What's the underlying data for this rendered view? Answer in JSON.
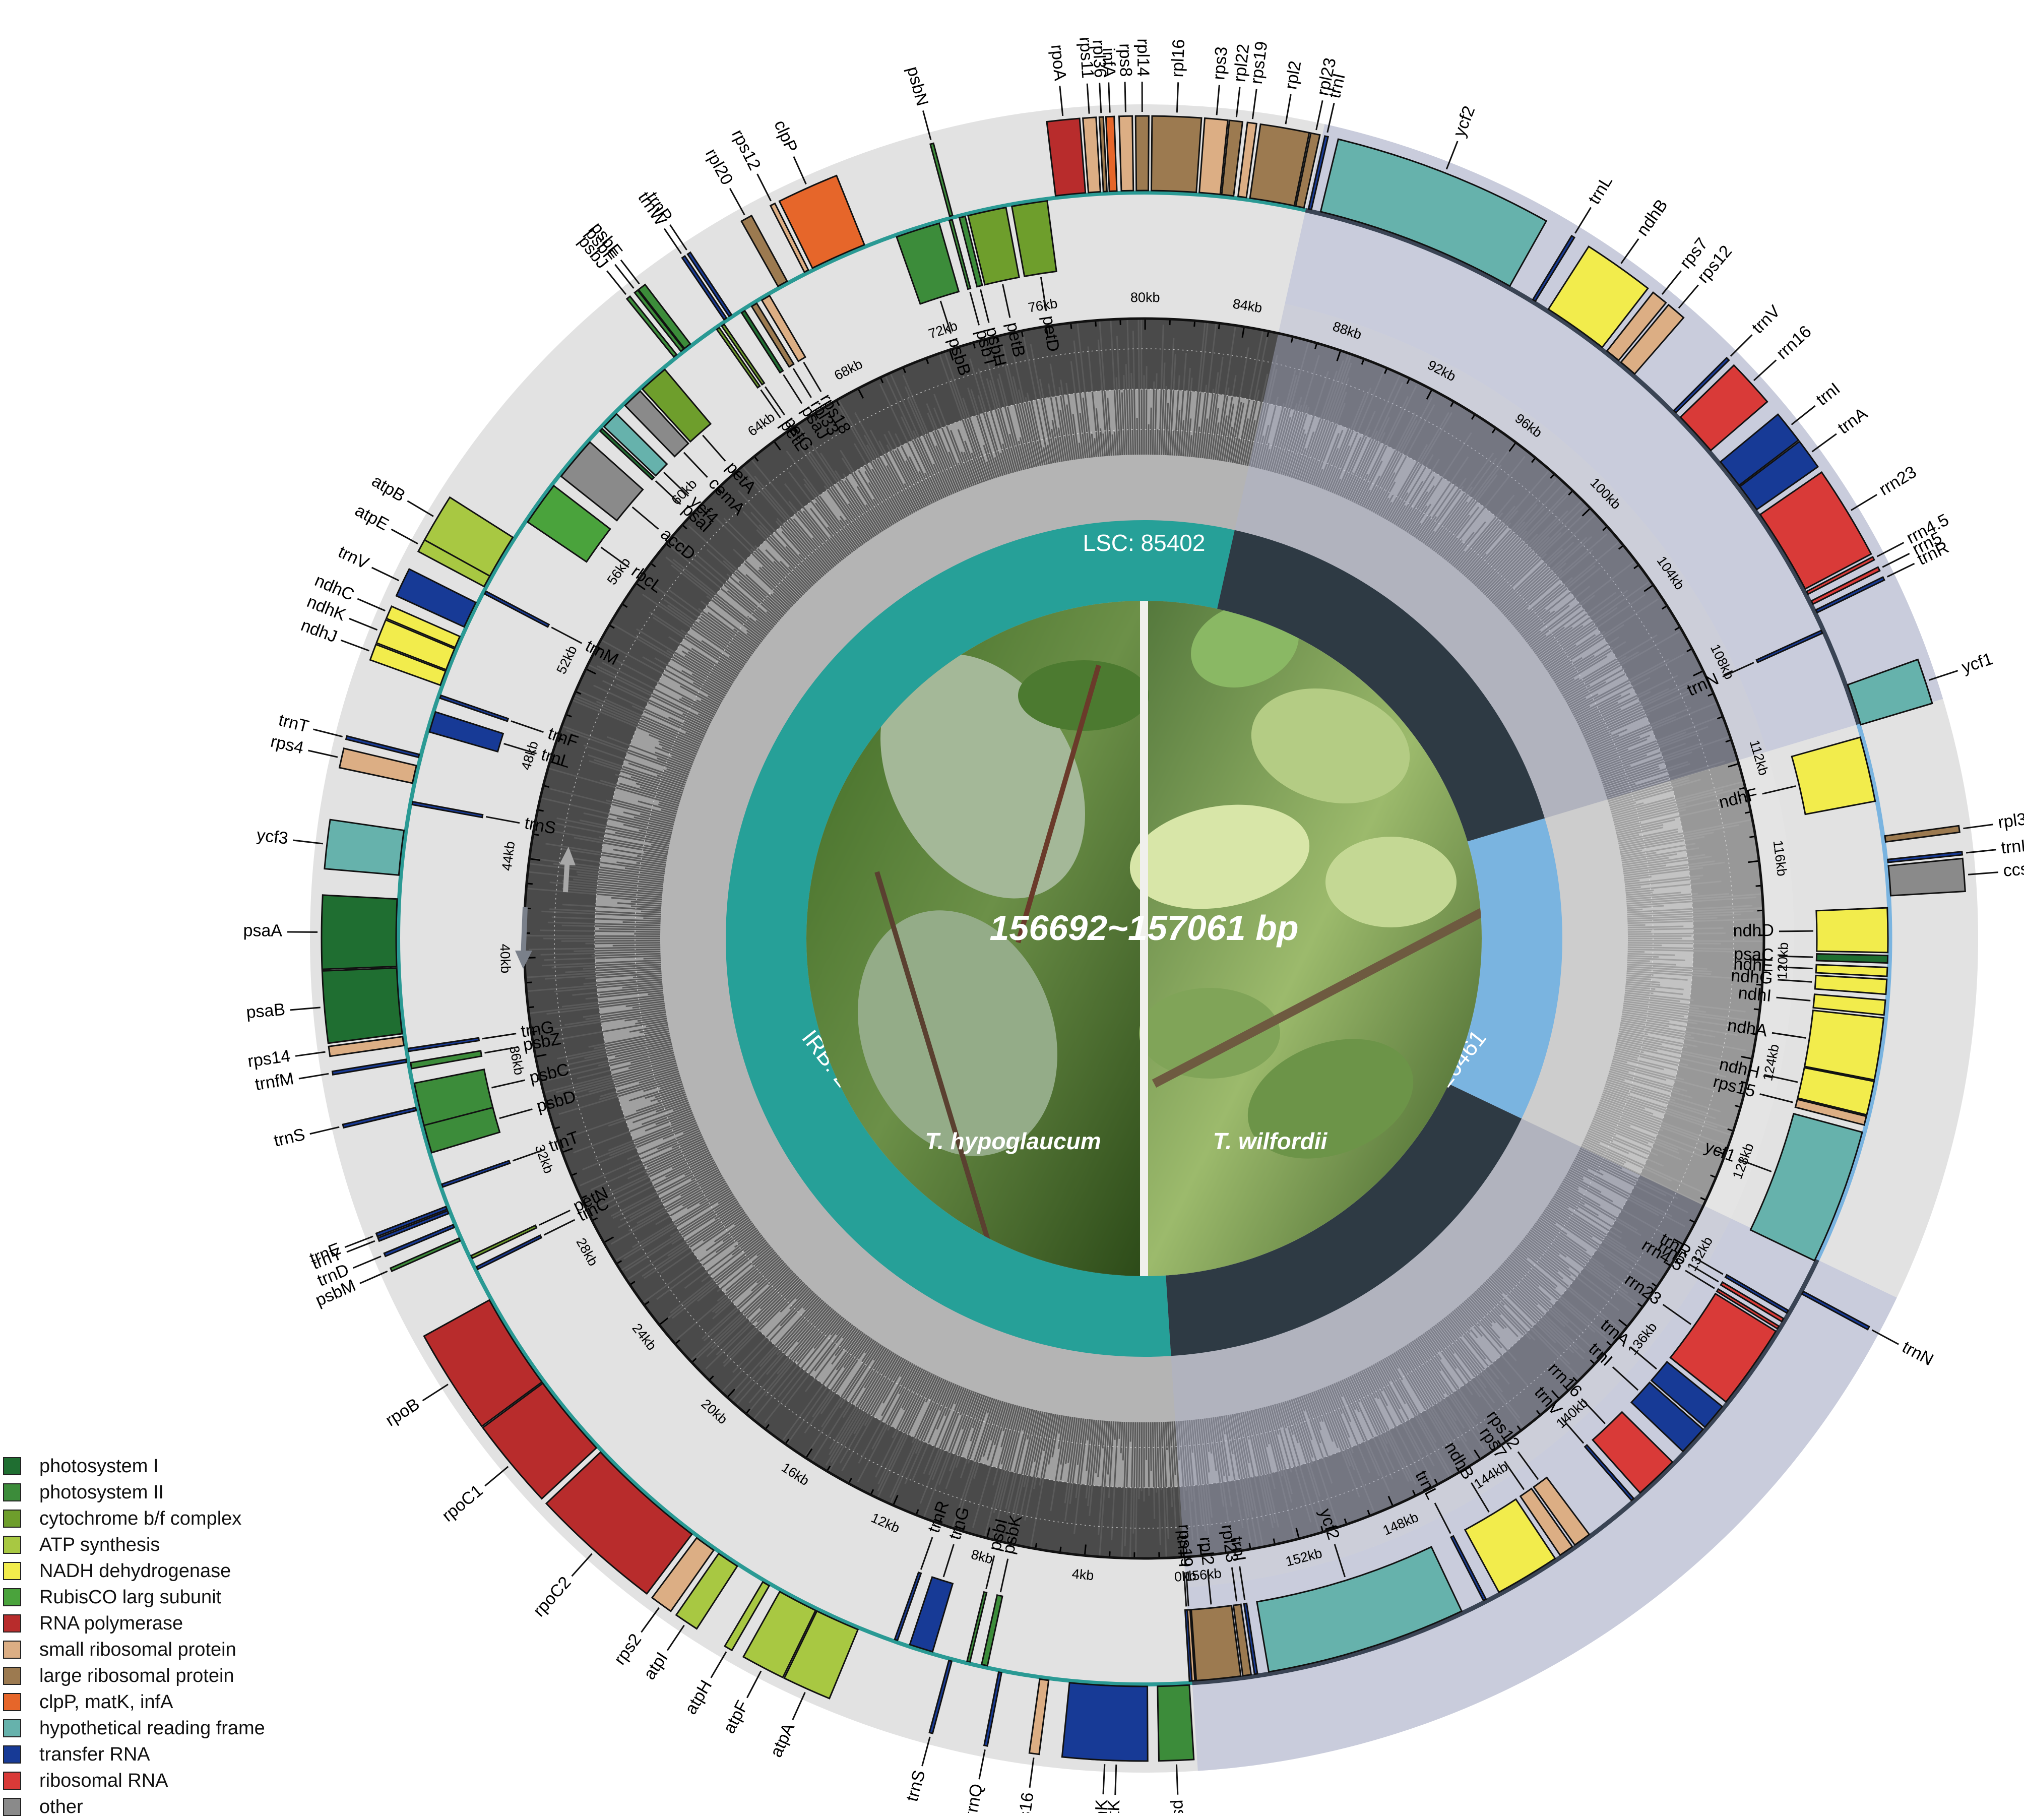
{
  "center": {
    "size_text": "156692~157061 bp",
    "species_left": "T. hypoglaucum",
    "species_right": "T. wilfordii"
  },
  "regions": [
    {
      "label": "LSC: 85402",
      "start": 0,
      "end": 85402,
      "color": "#26a098"
    },
    {
      "label": "IRA: 26461",
      "start": 85402,
      "end": 111863,
      "color": "#2e3a44"
    },
    {
      "label": "SSC: 18368",
      "start": 111863,
      "end": 130231,
      "color": "#7ab4e0"
    },
    {
      "label": "IRB: 26461",
      "start": 130231,
      "end": 156692,
      "color": "#2e3a44"
    }
  ],
  "ticks": [
    "0kb",
    "4kb",
    "8kb",
    "12kb",
    "16kb",
    "20kb",
    "24kb",
    "28kb",
    "32kb",
    "36kb",
    "40kb",
    "44kb",
    "48kb",
    "52kb",
    "56kb",
    "60kb",
    "64kb",
    "68kb",
    "72kb",
    "76kb",
    "80kb",
    "84kb",
    "88kb",
    "92kb",
    "96kb",
    "100kb",
    "104kb",
    "108kb",
    "112kb",
    "116kb",
    "120kb",
    "124kb",
    "128kb",
    "132kb",
    "136kb",
    "140kb",
    "144kb",
    "148kb",
    "152kb",
    "156kb"
  ],
  "categories": {
    "psI": "#1f6e31",
    "psII": "#3c8c3a",
    "cyt": "#6e9e2c",
    "atp": "#a8c842",
    "ndh": "#f2ec4c",
    "rbc": "#4aa33c",
    "rpo": "#b82c2c",
    "rps": "#dcae84",
    "rpl": "#9c7a50",
    "clp": "#e6662a",
    "ycf": "#66b2ac",
    "trn": "#173a96",
    "rrn": "#d93a38",
    "oth": "#8a8a8a"
  },
  "legend": [
    {
      "key": "photosystem-i",
      "label": "photosystem I"
    },
    {
      "key": "photosystem-ii",
      "label": "photosystem II"
    },
    {
      "key": "cytochrome-b-f-complex",
      "label": "cytochrome b/f complex"
    },
    {
      "key": "atp-synthesis",
      "label": "ATP synthesis"
    },
    {
      "key": "nadh-dehydrogenase",
      "label": "NADH dehydrogenase"
    },
    {
      "key": "rubisco",
      "label": "RubisCO larg subunit"
    },
    {
      "key": "rna-polymerase",
      "label": "RNA polymerase"
    },
    {
      "key": "small-ribosomal-protein",
      "label": "small ribosomal protein"
    },
    {
      "key": "large-ribosomal-protein",
      "label": "large ribosomal protein"
    },
    {
      "key": "clpp-matk-infa",
      "label": "clpP, matK, infA"
    },
    {
      "key": "hypothetical-reading-frame",
      "label": "hypothetical reading frame"
    },
    {
      "key": "transfer-rna",
      "label": "transfer RNA"
    },
    {
      "key": "ribosomal-rna",
      "label": "ribosomal RNA"
    },
    {
      "key": "other",
      "label": "other"
    }
  ],
  "genes": [
    {
      "name": "trnH",
      "start": 0,
      "end": 75,
      "cat": "trn",
      "strand": "in"
    },
    {
      "name": "psbA",
      "start": 100,
      "end": 1160,
      "cat": "psII",
      "strand": "out"
    },
    {
      "name": "matK",
      "start": 1700,
      "end": 3200,
      "cat": "clp",
      "strand": "out"
    },
    {
      "name": "trnK",
      "start": 1500,
      "end": 4100,
      "cat": "trn",
      "strand": "out"
    },
    {
      "name": "rps16",
      "start": 4800,
      "end": 5100,
      "cat": "rps",
      "strand": "out"
    },
    {
      "name": "trnQ",
      "start": 6400,
      "end": 6480,
      "cat": "trn",
      "strand": "out"
    },
    {
      "name": "psbK",
      "start": 6900,
      "end": 7100,
      "cat": "psII",
      "strand": "in"
    },
    {
      "name": "psbI",
      "start": 7500,
      "end": 7600,
      "cat": "psII",
      "strand": "in"
    },
    {
      "name": "trnS",
      "start": 8100,
      "end": 8190,
      "cat": "trn",
      "strand": "out"
    },
    {
      "name": "trnG",
      "start": 8800,
      "end": 9600,
      "cat": "trn",
      "strand": "in"
    },
    {
      "name": "trnR",
      "start": 10050,
      "end": 10120,
      "cat": "trn",
      "strand": "in"
    },
    {
      "name": "atpA",
      "start": 11400,
      "end": 12900,
      "cat": "atp",
      "strand": "out"
    },
    {
      "name": "atpF",
      "start": 12950,
      "end": 14300,
      "cat": "atp",
      "strand": "out"
    },
    {
      "name": "atpH",
      "start": 14700,
      "end": 14950,
      "cat": "atp",
      "strand": "out"
    },
    {
      "name": "atpI",
      "start": 15950,
      "end": 16700,
      "cat": "atp",
      "strand": "out"
    },
    {
      "name": "rps2",
      "start": 16900,
      "end": 17600,
      "cat": "rps",
      "strand": "out"
    },
    {
      "name": "rpoC2",
      "start": 17800,
      "end": 21900,
      "cat": "rpo",
      "strand": "out"
    },
    {
      "name": "rpoC1",
      "start": 22100,
      "end": 24900,
      "cat": "rpo",
      "strand": "out"
    },
    {
      "name": "rpoB",
      "start": 24950,
      "end": 28200,
      "cat": "rpo",
      "strand": "out"
    },
    {
      "name": "trnC",
      "start": 29300,
      "end": 29380,
      "cat": "trn",
      "strand": "in"
    },
    {
      "name": "petN",
      "start": 29700,
      "end": 29800,
      "cat": "cyt",
      "strand": "in"
    },
    {
      "name": "psbM",
      "start": 30400,
      "end": 30500,
      "cat": "psII",
      "strand": "out"
    },
    {
      "name": "trnD",
      "start": 30900,
      "end": 30980,
      "cat": "trn",
      "strand": "out"
    },
    {
      "name": "trnY",
      "start": 31400,
      "end": 31480,
      "cat": "trn",
      "strand": "out"
    },
    {
      "name": "trnE",
      "start": 31550,
      "end": 31630,
      "cat": "trn",
      "strand": "out"
    },
    {
      "name": "trnT",
      "start": 32300,
      "end": 32380,
      "cat": "trn",
      "strand": "in"
    },
    {
      "name": "psbD",
      "start": 33500,
      "end": 34500,
      "cat": "psII",
      "strand": "in"
    },
    {
      "name": "psbC",
      "start": 34450,
      "end": 35900,
      "cat": "psII",
      "strand": "in"
    },
    {
      "name": "trnS",
      "start": 35000,
      "end": 35090,
      "cat": "trn",
      "strand": "out"
    },
    {
      "name": "psbZ",
      "start": 36400,
      "end": 36600,
      "cat": "psII",
      "strand": "in"
    },
    {
      "name": "trnG",
      "start": 37000,
      "end": 37070,
      "cat": "trn",
      "strand": "in"
    },
    {
      "name": "trnfM",
      "start": 36650,
      "end": 36720,
      "cat": "trn",
      "strand": "out"
    },
    {
      "name": "rps14",
      "start": 37200,
      "end": 37500,
      "cat": "rps",
      "strand": "out"
    },
    {
      "name": "psaB",
      "start": 37600,
      "end": 39800,
      "cat": "psI",
      "strand": "out"
    },
    {
      "name": "psaA",
      "start": 39850,
      "end": 42100,
      "cat": "psI",
      "strand": "out"
    },
    {
      "name": "ycf3",
      "start": 42900,
      "end": 44400,
      "cat": "ycf",
      "strand": "out"
    },
    {
      "name": "trnS",
      "start": 45300,
      "end": 45390,
      "cat": "trn",
      "strand": "in"
    },
    {
      "name": "rps4",
      "start": 46000,
      "end": 46600,
      "cat": "rps",
      "strand": "out"
    },
    {
      "name": "trnT",
      "start": 46900,
      "end": 46970,
      "cat": "trn",
      "strand": "out"
    },
    {
      "name": "trnL",
      "start": 47800,
      "end": 48500,
      "cat": "trn",
      "strand": "in"
    },
    {
      "name": "trnF",
      "start": 49000,
      "end": 49070,
      "cat": "trn",
      "strand": "in"
    },
    {
      "name": "ndhJ",
      "start": 49400,
      "end": 49900,
      "cat": "ndh",
      "strand": "out"
    },
    {
      "name": "ndhK",
      "start": 49950,
      "end": 50700,
      "cat": "ndh",
      "strand": "out"
    },
    {
      "name": "ndhC",
      "start": 50750,
      "end": 51150,
      "cat": "ndh",
      "strand": "out"
    },
    {
      "name": "trnV",
      "start": 51500,
      "end": 52400,
      "cat": "trn",
      "strand": "out"
    },
    {
      "name": "trnM",
      "start": 52800,
      "end": 52880,
      "cat": "trn",
      "strand": "in"
    },
    {
      "name": "atpE",
      "start": 53000,
      "end": 53400,
      "cat": "atp",
      "strand": "out"
    },
    {
      "name": "atpB",
      "start": 53400,
      "end": 54900,
      "cat": "atp",
      "strand": "out"
    },
    {
      "name": "rbcL",
      "start": 55600,
      "end": 57100,
      "cat": "rbc",
      "strand": "in"
    },
    {
      "name": "accD",
      "start": 57500,
      "end": 59000,
      "cat": "oth",
      "strand": "in"
    },
    {
      "name": "psaI",
      "start": 59500,
      "end": 59610,
      "cat": "psI",
      "strand": "in"
    },
    {
      "name": "ycf4",
      "start": 59700,
      "end": 60300,
      "cat": "ycf",
      "strand": "in"
    },
    {
      "name": "cemA",
      "start": 60700,
      "end": 61400,
      "cat": "oth",
      "strand": "in"
    },
    {
      "name": "petA",
      "start": 61500,
      "end": 62500,
      "cat": "cyt",
      "strand": "in"
    },
    {
      "name": "psbJ",
      "start": 63000,
      "end": 63120,
      "cat": "psII",
      "strand": "out"
    },
    {
      "name": "psbF",
      "start": 63300,
      "end": 63420,
      "cat": "psII",
      "strand": "out"
    },
    {
      "name": "psbE",
      "start": 63450,
      "end": 63700,
      "cat": "psII",
      "strand": "out"
    },
    {
      "name": "trnW",
      "start": 65100,
      "end": 65170,
      "cat": "trn",
      "strand": "out"
    },
    {
      "name": "trnP",
      "start": 65300,
      "end": 65370,
      "cat": "trn",
      "strand": "out"
    },
    {
      "name": "petL",
      "start": 64700,
      "end": 64800,
      "cat": "cyt",
      "strand": "in"
    },
    {
      "name": "petG",
      "start": 64900,
      "end": 65000,
      "cat": "cyt",
      "strand": "in"
    },
    {
      "name": "psaJ",
      "start": 65700,
      "end": 65830,
      "cat": "psI",
      "strand": "in"
    },
    {
      "name": "rpl33",
      "start": 66100,
      "end": 66300,
      "cat": "rpl",
      "strand": "in"
    },
    {
      "name": "rps18",
      "start": 66500,
      "end": 66800,
      "cat": "rps",
      "strand": "in"
    },
    {
      "name": "rpl20",
      "start": 67200,
      "end": 67550,
      "cat": "rpl",
      "strand": "out"
    },
    {
      "name": "rps12",
      "start": 68200,
      "end": 68350,
      "cat": "rps",
      "strand": "out"
    },
    {
      "name": "clpP",
      "start": 68500,
      "end": 70400,
      "cat": "clp",
      "strand": "out"
    },
    {
      "name": "psbB",
      "start": 71500,
      "end": 73000,
      "cat": "psII",
      "strand": "in"
    },
    {
      "name": "psbN",
      "start": 73400,
      "end": 73500,
      "cat": "psII",
      "strand": "out"
    },
    {
      "name": "psbT",
      "start": 73350,
      "end": 73450,
      "cat": "psII",
      "strand": "in"
    },
    {
      "name": "psbH",
      "start": 73700,
      "end": 73900,
      "cat": "psII",
      "strand": "in"
    },
    {
      "name": "petB",
      "start": 74000,
      "end": 75300,
      "cat": "cyt",
      "strand": "in"
    },
    {
      "name": "petD",
      "start": 75500,
      "end": 76700,
      "cat": "cyt",
      "strand": "in"
    },
    {
      "name": "rpoA",
      "start": 77000,
      "end": 78000,
      "cat": "rpo",
      "strand": "out"
    },
    {
      "name": "rps11",
      "start": 78100,
      "end": 78500,
      "cat": "rps",
      "strand": "out"
    },
    {
      "name": "rpl36",
      "start": 78600,
      "end": 78720,
      "cat": "rpl",
      "strand": "out"
    },
    {
      "name": "infA",
      "start": 78800,
      "end": 79050,
      "cat": "clp",
      "strand": "out"
    },
    {
      "name": "rps8",
      "start": 79200,
      "end": 79600,
      "cat": "rps",
      "strand": "out"
    },
    {
      "name": "rpl14",
      "start": 79700,
      "end": 80100,
      "cat": "rpl",
      "strand": "out"
    },
    {
      "name": "rpl16",
      "start": 80200,
      "end": 81700,
      "cat": "rpl",
      "strand": "out"
    },
    {
      "name": "rps3",
      "start": 81800,
      "end": 82500,
      "cat": "rps",
      "strand": "out"
    },
    {
      "name": "rpl22",
      "start": 82550,
      "end": 82950,
      "cat": "rpl",
      "strand": "out"
    },
    {
      "name": "rps19",
      "start": 83100,
      "end": 83380,
      "cat": "rps",
      "strand": "out"
    },
    {
      "name": "rpl2",
      "start": 83500,
      "end": 85000,
      "cat": "rpl",
      "strand": "out"
    },
    {
      "name": "rpl23",
      "start": 85050,
      "end": 85330,
      "cat": "rpl",
      "strand": "out"
    },
    {
      "name": "trnI",
      "start": 85500,
      "end": 85570,
      "cat": "trn",
      "strand": "out"
    },
    {
      "name": "ycf2",
      "start": 85900,
      "end": 92700,
      "cat": "ycf",
      "strand": "out"
    },
    {
      "name": "trnL",
      "start": 93600,
      "end": 93680,
      "cat": "trn",
      "strand": "out"
    },
    {
      "name": "ndhB",
      "start": 94200,
      "end": 96400,
      "cat": "ndh",
      "strand": "out"
    },
    {
      "name": "rps7",
      "start": 96600,
      "end": 97100,
      "cat": "rps",
      "strand": "out"
    },
    {
      "name": "rps12",
      "start": 97200,
      "end": 97800,
      "cat": "rps",
      "strand": "out"
    },
    {
      "name": "trnV",
      "start": 99600,
      "end": 99670,
      "cat": "trn",
      "strand": "out"
    },
    {
      "name": "rrn16",
      "start": 99900,
      "end": 101400,
      "cat": "rrn",
      "strand": "out"
    },
    {
      "name": "trnI",
      "start": 101900,
      "end": 102900,
      "cat": "trn",
      "strand": "out"
    },
    {
      "name": "trnA",
      "start": 102950,
      "end": 103900,
      "cat": "trn",
      "strand": "out"
    },
    {
      "name": "rrn23",
      "start": 104100,
      "end": 107000,
      "cat": "rrn",
      "strand": "out"
    },
    {
      "name": "rrn4.5",
      "start": 107100,
      "end": 107200,
      "cat": "rrn",
      "strand": "out"
    },
    {
      "name": "rrn5",
      "start": 107450,
      "end": 107570,
      "cat": "rrn",
      "strand": "out"
    },
    {
      "name": "trnR",
      "start": 107800,
      "end": 107870,
      "cat": "trn",
      "strand": "out"
    },
    {
      "name": "trnN",
      "start": 108500,
      "end": 108570,
      "cat": "trn",
      "strand": "in"
    },
    {
      "name": "ycf1",
      "start": 110500,
      "end": 111900,
      "cat": "ycf",
      "strand": "out"
    },
    {
      "name": "ndhF",
      "start": 112300,
      "end": 114500,
      "cat": "ndh",
      "strand": "in"
    },
    {
      "name": "rpl32",
      "start": 115700,
      "end": 115900,
      "cat": "rpl",
      "strand": "out"
    },
    {
      "name": "trnL",
      "start": 116500,
      "end": 116580,
      "cat": "trn",
      "strand": "out"
    },
    {
      "name": "ccsA",
      "start": 116700,
      "end": 117700,
      "cat": "oth",
      "strand": "out"
    },
    {
      "name": "ndhD",
      "start": 118100,
      "end": 119600,
      "cat": "ndh",
      "strand": "in"
    },
    {
      "name": "psaC",
      "start": 119700,
      "end": 119950,
      "cat": "psI",
      "strand": "in"
    },
    {
      "name": "ndhE",
      "start": 120100,
      "end": 120400,
      "cat": "ndh",
      "strand": "in"
    },
    {
      "name": "ndhG",
      "start": 120500,
      "end": 121000,
      "cat": "ndh",
      "strand": "in"
    },
    {
      "name": "ndhI",
      "start": 121200,
      "end": 121700,
      "cat": "ndh",
      "strand": "in"
    },
    {
      "name": "ndhA",
      "start": 121800,
      "end": 123900,
      "cat": "ndh",
      "strand": "in"
    },
    {
      "name": "ndhH",
      "start": 123950,
      "end": 125100,
      "cat": "ndh",
      "strand": "in"
    },
    {
      "name": "rps15",
      "start": 125150,
      "end": 125450,
      "cat": "rps",
      "strand": "in"
    },
    {
      "name": "ycf1",
      "start": 125700,
      "end": 130300,
      "cat": "ycf",
      "strand": "in"
    },
    {
      "name": "trnN",
      "start": 131400,
      "end": 131470,
      "cat": "trn",
      "strand": "out"
    },
    {
      "name": "trnR",
      "start": 132200,
      "end": 132270,
      "cat": "trn",
      "strand": "in"
    },
    {
      "name": "rrn5",
      "start": 132500,
      "end": 132620,
      "cat": "rrn",
      "strand": "in"
    },
    {
      "name": "rrn4.5",
      "start": 132800,
      "end": 132900,
      "cat": "rrn",
      "strand": "in"
    },
    {
      "name": "rrn23",
      "start": 133000,
      "end": 135900,
      "cat": "rrn",
      "strand": "in"
    },
    {
      "name": "trnA",
      "start": 136100,
      "end": 137000,
      "cat": "trn",
      "strand": "in"
    },
    {
      "name": "trnI",
      "start": 137100,
      "end": 138100,
      "cat": "trn",
      "strand": "in"
    },
    {
      "name": "rrn16",
      "start": 138600,
      "end": 140100,
      "cat": "rrn",
      "strand": "in"
    },
    {
      "name": "trnV",
      "start": 140400,
      "end": 140470,
      "cat": "trn",
      "strand": "in"
    },
    {
      "name": "rps12",
      "start": 142300,
      "end": 142900,
      "cat": "rps",
      "strand": "in"
    },
    {
      "name": "rps7",
      "start": 143000,
      "end": 143500,
      "cat": "rps",
      "strand": "in"
    },
    {
      "name": "ndhB",
      "start": 143700,
      "end": 145900,
      "cat": "ndh",
      "strand": "in"
    },
    {
      "name": "trnL",
      "start": 146400,
      "end": 146480,
      "cat": "trn",
      "strand": "in"
    },
    {
      "name": "ycf2",
      "start": 147300,
      "end": 154100,
      "cat": "ycf",
      "strand": "in"
    },
    {
      "name": "trnI",
      "start": 154500,
      "end": 154570,
      "cat": "trn",
      "strand": "in"
    },
    {
      "name": "rpl23",
      "start": 154700,
      "end": 154980,
      "cat": "rpl",
      "strand": "in"
    },
    {
      "name": "rpl2",
      "start": 155050,
      "end": 156550,
      "cat": "rpl",
      "strand": "in"
    },
    {
      "name": "rps19",
      "start": 156600,
      "end": 156692,
      "cat": "rps",
      "strand": "in"
    }
  ]
}
